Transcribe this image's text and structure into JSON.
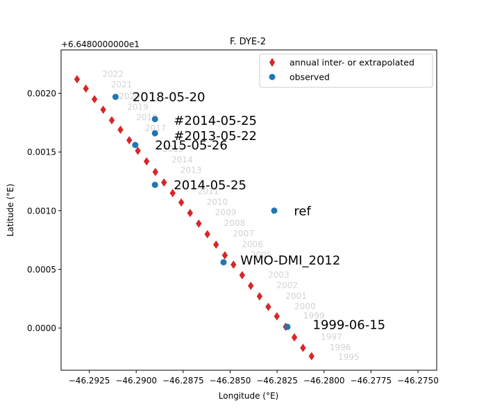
{
  "chart_data": {
    "type": "scatter",
    "title": "F. DYE-2",
    "xlabel": "Longitude (°E)",
    "ylabel": "Latitude (°E)",
    "y_offset_text": "+6.6480000000e1",
    "xlim": [
      -46.294,
      -46.274
    ],
    "ylim": [
      -0.00036,
      0.00237
    ],
    "x_ticks": [
      -46.2925,
      -46.29,
      -46.2875,
      -46.285,
      -46.2825,
      -46.28,
      -46.2775,
      -46.275
    ],
    "x_tick_labels": [
      "−46.2925",
      "−46.2900",
      "−46.2875",
      "−46.2850",
      "−46.2825",
      "−46.2800",
      "−46.2775",
      "−46.2750"
    ],
    "y_ticks": [
      0.0,
      0.0005,
      0.001,
      0.0015,
      0.002
    ],
    "y_tick_labels": [
      "0.0000",
      "0.0005",
      "0.0010",
      "0.0015",
      "0.0020"
    ],
    "grid": false,
    "legend_position": "top-right",
    "colors": {
      "annual": "#d62728",
      "observed": "#1f77b4",
      "year_label": "#d3d3d3"
    },
    "series": [
      {
        "name": "annual inter- or extrapolated",
        "marker": "diamond",
        "points": [
          {
            "x": -46.29315,
            "y": 0.00212
          },
          {
            "x": -46.29268,
            "y": 0.00204
          },
          {
            "x": -46.29222,
            "y": 0.00195
          },
          {
            "x": -46.29176,
            "y": 0.00186
          },
          {
            "x": -46.2913,
            "y": 0.00177
          },
          {
            "x": -46.29084,
            "y": 0.00169
          },
          {
            "x": -46.29037,
            "y": 0.0016
          },
          {
            "x": -46.28991,
            "y": 0.00151
          },
          {
            "x": -46.28945,
            "y": 0.00142
          },
          {
            "x": -46.28898,
            "y": 0.00133
          },
          {
            "x": -46.28852,
            "y": 0.00124
          },
          {
            "x": -46.28806,
            "y": 0.00115
          },
          {
            "x": -46.2876,
            "y": 0.00107
          },
          {
            "x": -46.28713,
            "y": 0.00098
          },
          {
            "x": -46.28667,
            "y": 0.00089
          },
          {
            "x": -46.28621,
            "y": 0.0008
          },
          {
            "x": -46.28575,
            "y": 0.00071
          },
          {
            "x": -46.28528,
            "y": 0.00062
          },
          {
            "x": -46.28482,
            "y": 0.00054
          },
          {
            "x": -46.28436,
            "y": 0.00045
          },
          {
            "x": -46.2839,
            "y": 0.00036
          },
          {
            "x": -46.28343,
            "y": 0.00027
          },
          {
            "x": -46.28297,
            "y": 0.00018
          },
          {
            "x": -46.28251,
            "y": 0.0001
          },
          {
            "x": -46.28204,
            "y": 1e-05
          },
          {
            "x": -46.28158,
            "y": -8e-05
          },
          {
            "x": -46.28112,
            "y": -0.00017
          },
          {
            "x": -46.28066,
            "y": -0.00024
          }
        ]
      },
      {
        "name": "observed",
        "marker": "circle",
        "points": [
          {
            "x": -46.2911,
            "y": 0.00197
          },
          {
            "x": -46.289,
            "y": 0.00178
          },
          {
            "x": -46.289,
            "y": 0.00166
          },
          {
            "x": -46.29005,
            "y": 0.00156
          },
          {
            "x": -46.289,
            "y": 0.00122
          },
          {
            "x": -46.28535,
            "y": 0.00056
          },
          {
            "x": -46.28195,
            "y": 1e-05
          },
          {
            "x": -46.28265,
            "y": 0.001
          }
        ]
      }
    ],
    "year_labels": [
      {
        "text": "2022",
        "x": -46.2918,
        "y": 0.00214
      },
      {
        "text": "2021",
        "x": -46.29135,
        "y": 0.00205
      },
      {
        "text": "2020",
        "x": -46.29092,
        "y": 0.00195
      },
      {
        "text": "2019",
        "x": -46.29048,
        "y": 0.00186
      },
      {
        "text": "2018",
        "x": -46.29,
        "y": 0.00177
      },
      {
        "text": "2017",
        "x": -46.28953,
        "y": 0.00168
      },
      {
        "text": "2015",
        "x": -46.2886,
        "y": 0.0015
      },
      {
        "text": "2014",
        "x": -46.28812,
        "y": 0.00141
      },
      {
        "text": "2013",
        "x": -46.28765,
        "y": 0.00132
      },
      {
        "text": "2011",
        "x": -46.28672,
        "y": 0.00114
      },
      {
        "text": "2010",
        "x": -46.28625,
        "y": 0.00105
      },
      {
        "text": "2009",
        "x": -46.2858,
        "y": 0.00096
      },
      {
        "text": "2008",
        "x": -46.28532,
        "y": 0.00087
      },
      {
        "text": "2007",
        "x": -46.28485,
        "y": 0.00078
      },
      {
        "text": "2006",
        "x": -46.28438,
        "y": 0.00069
      },
      {
        "text": "2005",
        "x": -46.28392,
        "y": 0.0006
      },
      {
        "text": "2003",
        "x": -46.28298,
        "y": 0.00043
      },
      {
        "text": "2002",
        "x": -46.28252,
        "y": 0.00034
      },
      {
        "text": "2001",
        "x": -46.28205,
        "y": 0.00025
      },
      {
        "text": "2000",
        "x": -46.28158,
        "y": 0.00016
      },
      {
        "text": "1999",
        "x": -46.2811,
        "y": 8e-05
      },
      {
        "text": "1997",
        "x": -46.28017,
        "y": -0.0001
      },
      {
        "text": "1996",
        "x": -46.2797,
        "y": -0.00019
      },
      {
        "text": "1995",
        "x": -46.27925,
        "y": -0.00027
      }
    ],
    "observed_labels": [
      {
        "text": "2018-05-20",
        "x": -46.2902,
        "y": 0.00197
      },
      {
        "text": "#2014-05-25",
        "x": -46.288,
        "y": 0.00177
      },
      {
        "text": "#2013-05-22",
        "x": -46.288,
        "y": 0.00164
      },
      {
        "text": "2015-05-26",
        "x": -46.289,
        "y": 0.00156
      },
      {
        "text": "2014-05-25",
        "x": -46.288,
        "y": 0.00122
      },
      {
        "text": "ref",
        "x": -46.2816,
        "y": 0.001
      },
      {
        "text": "WMO-DMI_2012",
        "x": -46.28445,
        "y": 0.00058
      },
      {
        "text": "1999-06-15",
        "x": -46.2806,
        "y": 3e-05
      }
    ]
  }
}
